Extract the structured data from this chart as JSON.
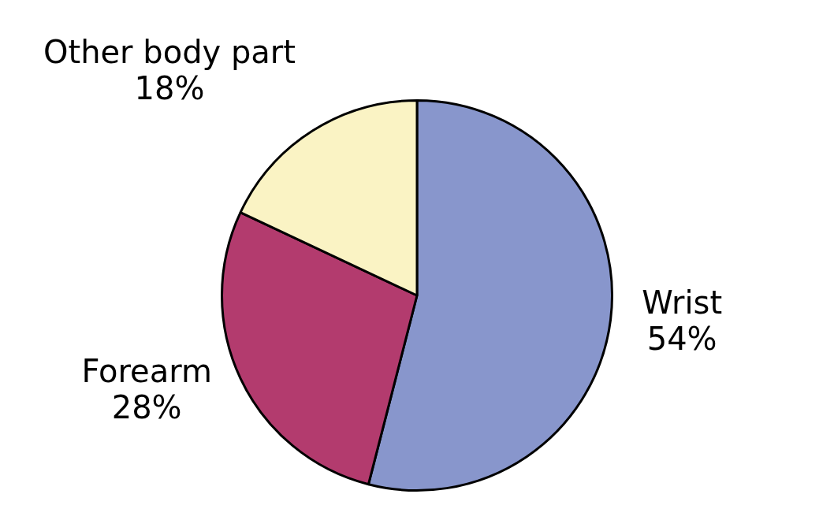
{
  "chart_data": {
    "type": "pie",
    "categories": [
      "Wrist",
      "Forearm",
      "Other body part"
    ],
    "values": [
      54,
      28,
      18
    ],
    "colors": [
      "#8896cc",
      "#b33b6e",
      "#faf3c4"
    ],
    "value_labels": [
      "54%",
      "28%",
      "18%"
    ],
    "legend": false
  }
}
